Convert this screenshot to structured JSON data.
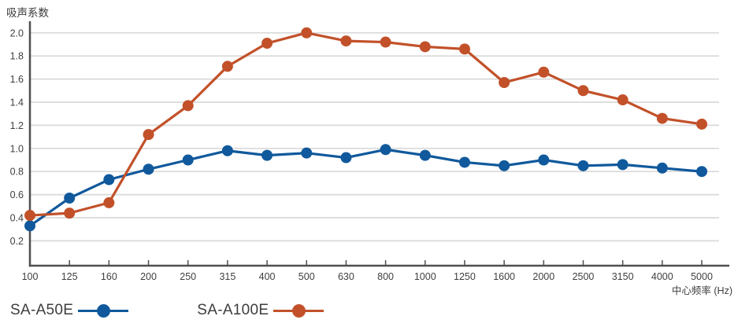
{
  "title": "吸声系数",
  "xlabel": "中心频率 (Hz)",
  "chart_data": {
    "type": "line",
    "title": "吸声系数",
    "xlabel": "中心频率 (Hz)",
    "ylabel": "",
    "categories": [
      "100",
      "125",
      "160",
      "200",
      "250",
      "315",
      "400",
      "500",
      "630",
      "800",
      "1000",
      "1250",
      "1600",
      "2000",
      "2500",
      "3150",
      "4000",
      "5000"
    ],
    "yticks": [
      "0.2",
      "0.4",
      "0.6",
      "0.8",
      "1.0",
      "1.2",
      "1.4",
      "1.6",
      "1.8",
      "2.0"
    ],
    "ylim": [
      0,
      2.1
    ],
    "grid": true,
    "legend_position": "bottom-left",
    "series": [
      {
        "name": "SA-A50E",
        "color": "#10599c",
        "marker": "circle",
        "values": [
          0.33,
          0.57,
          0.73,
          0.82,
          0.9,
          0.98,
          0.94,
          0.96,
          0.92,
          0.99,
          0.94,
          0.88,
          0.85,
          0.9,
          0.85,
          0.86,
          0.83,
          0.8
        ]
      },
      {
        "name": "SA-A100E",
        "color": "#c2512a",
        "marker": "circle",
        "values": [
          0.42,
          0.44,
          0.53,
          1.12,
          1.37,
          1.71,
          1.91,
          2.0,
          1.93,
          1.92,
          1.88,
          1.86,
          1.57,
          1.66,
          1.5,
          1.42,
          1.26,
          1.21
        ]
      }
    ]
  },
  "colors": {
    "axis": "#4f4f51",
    "grid": "#d9d9d9",
    "tick_label": "#3f3f3f",
    "legend_text": "#3d3d3d",
    "background": "#ffffff"
  }
}
